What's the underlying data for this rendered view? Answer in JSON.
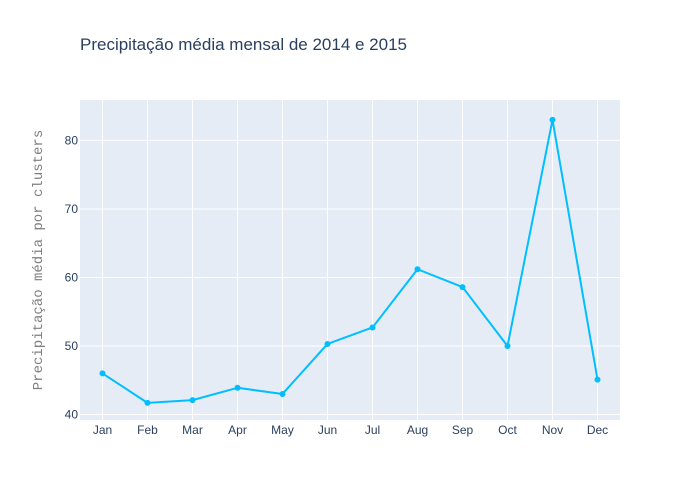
{
  "chart_data": {
    "type": "line",
    "title": "Precipitação média mensal de 2014 e 2015",
    "xlabel": "",
    "ylabel": "Precipitação média por clusters",
    "categories": [
      "Jan",
      "Feb",
      "Mar",
      "Apr",
      "May",
      "Jun",
      "Jul",
      "Aug",
      "Sep",
      "Oct",
      "Nov",
      "Dec"
    ],
    "series": [
      {
        "values": [
          46.0,
          41.7,
          42.1,
          43.9,
          43.0,
          50.3,
          52.7,
          61.2,
          58.6,
          50.0,
          83.0,
          45.1
        ]
      }
    ],
    "ylim": [
      39.2,
      85.9
    ],
    "yticks": [
      40,
      50,
      60,
      70,
      80
    ],
    "grid": true,
    "colors": {
      "plot_background": "#e5ecf6",
      "grid": "#ffffff",
      "line": "#00bfff",
      "text": "#2a3f5f",
      "axis_title": "#7f7f7f"
    }
  }
}
